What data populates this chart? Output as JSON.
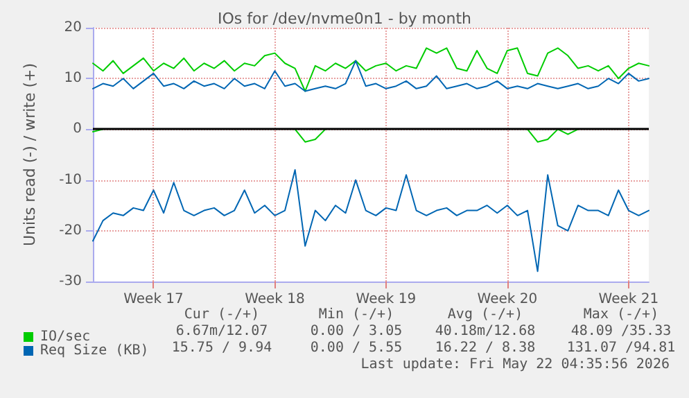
{
  "chart_data": {
    "type": "line",
    "title": "IOs for /dev/nvme0n1 - by month",
    "ylabel": "Units read (-) / write (+)",
    "categories": [
      null,
      null,
      null,
      null,
      null,
      null,
      "Week 17",
      null,
      null,
      null,
      null,
      null,
      null,
      null,
      null,
      null,
      null,
      null,
      "Week 18",
      null,
      null,
      null,
      null,
      null,
      null,
      null,
      null,
      null,
      null,
      "Week 19",
      null,
      null,
      null,
      null,
      null,
      null,
      null,
      null,
      null,
      null,
      null,
      "Week 20",
      null,
      null,
      null,
      null,
      null,
      null,
      null,
      null,
      null,
      null,
      null,
      "Week 21",
      null,
      null
    ],
    "series": [
      {
        "name": "IO/sec",
        "color": "#00cc00",
        "values": [
          13,
          11.5,
          13.5,
          11,
          12.5,
          14,
          11.5,
          13,
          12,
          14,
          11.5,
          13,
          12,
          13.5,
          11.5,
          13,
          12.5,
          14.5,
          15,
          13,
          12,
          7.5,
          12.5,
          11.5,
          13,
          12,
          13.5,
          11.5,
          12.5,
          13,
          11.5,
          12.5,
          12,
          16,
          15,
          16,
          12,
          11.5,
          15.5,
          12,
          11,
          15.5,
          16,
          11,
          10.5,
          15,
          16,
          14.5,
          12,
          12.5,
          11.5,
          12.5,
          10,
          12,
          13,
          12.5
        ]
      },
      {
        "color": "#00cc00",
        "values": [
          -0.5,
          0,
          null,
          null,
          null,
          null,
          null,
          null,
          null,
          null,
          null,
          null,
          null,
          null,
          null,
          null,
          null,
          null,
          null,
          null,
          0,
          -2.5,
          -2,
          0,
          null,
          null,
          null,
          null,
          null,
          null,
          null,
          null,
          null,
          null,
          null,
          null,
          null,
          null,
          null,
          null,
          null,
          null,
          null,
          0,
          -2.5,
          -2,
          0,
          -1,
          0,
          null,
          null,
          null,
          null,
          null,
          null,
          null
        ]
      },
      {
        "name": "Req Size (KB)",
        "color": "#0066b3",
        "values": [
          8,
          9,
          8.5,
          10,
          8,
          9.5,
          11,
          8.5,
          9,
          8,
          9.5,
          8.5,
          9,
          8,
          10,
          8.5,
          9,
          8,
          11.5,
          8.5,
          9,
          7.5,
          8,
          8.5,
          8,
          9,
          13.5,
          8.5,
          9,
          8,
          8.5,
          9.5,
          8,
          8.5,
          10.5,
          8,
          8.5,
          9,
          8,
          8.5,
          9.5,
          8,
          8.5,
          8,
          9,
          8.5,
          8,
          8.5,
          9,
          8,
          8.5,
          10,
          9,
          11,
          9.5,
          10
        ]
      },
      {
        "color": "#0066b3",
        "values": [
          -22,
          -18,
          -16.5,
          -17,
          -15.5,
          -16,
          -12,
          -16.5,
          -10.5,
          -16,
          -17,
          -16,
          -15.5,
          -17,
          -16,
          -12,
          -16.5,
          -15,
          -17,
          -16,
          -8,
          -23,
          -16,
          -18,
          -15,
          -16.5,
          -10,
          -16,
          -17,
          -15.5,
          -16,
          -9,
          -16,
          -17,
          -16,
          -15.5,
          -17,
          -16,
          -16,
          -15,
          -16.5,
          -15,
          -17,
          -16,
          -28,
          -9,
          -19,
          -20,
          -15,
          -16,
          -16,
          -17,
          -12,
          -16,
          -17,
          -16
        ]
      }
    ],
    "ylim": [
      -30,
      20
    ],
    "yticks": [
      -30,
      -20,
      -10,
      0,
      10,
      20
    ],
    "ref_lines": [
      {
        "axis": "y",
        "value": 0,
        "color": "#000000"
      }
    ],
    "grid": true,
    "legend": "bottom left",
    "marker": "none",
    "line_style": "solid",
    "annotations": [
      "Cur (-/+)",
      "Min (-/+)",
      "Avg (-/+)",
      "Max (-/+)",
      "6.67m/12.07",
      "0.00 / 3.05",
      "40.18m/12.68",
      "48.09 /35.33",
      "15.75 / 9.94",
      "0.00 / 5.55",
      "16.22 / 8.38",
      "131.07 /94.81",
      "Last update: Fri May 22 04:35:56 2026"
    ]
  }
}
